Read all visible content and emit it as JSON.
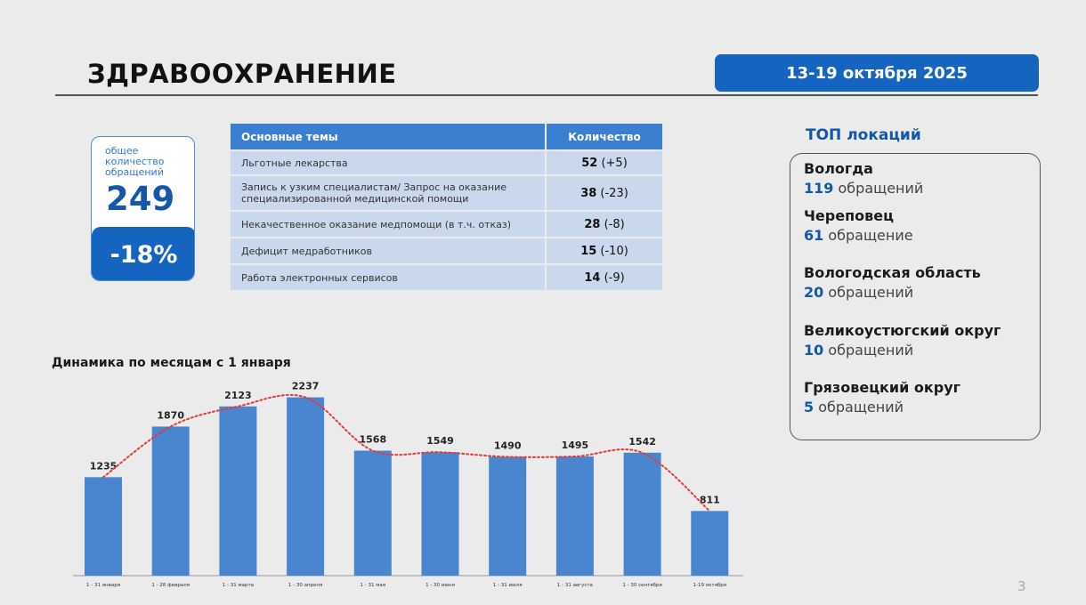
{
  "header": {
    "title": "ЗДРАВООХРАНЕНИЕ",
    "date_range": "13-19 октября 2025"
  },
  "total": {
    "label": "общее количество обращений",
    "value": "249",
    "change": "-18%"
  },
  "topics": {
    "col_topic": "Основные темы",
    "col_count": "Количество",
    "rows": [
      {
        "topic": "Льготные лекарства",
        "count": "52",
        "delta": "(+5)"
      },
      {
        "topic": "Запись к узким специалистам/ Запрос на оказание специализированной медицинской помощи",
        "count": "38",
        "delta": "(-23)"
      },
      {
        "topic": "Некачественное оказание медпомощи (в т.ч. отказ)",
        "count": "28",
        "delta": "(-8)"
      },
      {
        "topic": "Дефицит медработников",
        "count": "15",
        "delta": "(-10)"
      },
      {
        "topic": "Работа электронных сервисов",
        "count": "14",
        "delta": "(-9)"
      }
    ]
  },
  "locations": {
    "title": "ТОП локаций",
    "items": [
      {
        "name": "Вологда",
        "count": "119",
        "unit": "обращений"
      },
      {
        "name": "Череповец",
        "count": "61",
        "unit": "обращение"
      },
      {
        "name": "Вологодская область",
        "count": "20",
        "unit": "обращений"
      },
      {
        "name": "Великоустюгский округ",
        "count": "10",
        "unit": "обращений"
      },
      {
        "name": "Грязовецкий округ",
        "count": "5",
        "unit": "обращений"
      }
    ]
  },
  "chart_title": "Динамика по месяцам с 1 января",
  "page_number": "3",
  "colors": {
    "accent": "#1565c0",
    "bar": "#4a86d0",
    "trend": "#e53935",
    "table_header": "#3b7fd0",
    "table_row": "#c9d8ec"
  },
  "chart_data": {
    "type": "bar",
    "categories": [
      "1 - 31 января",
      "1 - 28 февраля",
      "1 - 31 марта",
      "1 - 30 апреля",
      "1 - 31 мая",
      "1 - 30 июня",
      "1 - 31 июля",
      "1 - 31 августа",
      "1 - 30 сентября",
      "1-19 октября"
    ],
    "values": [
      1235,
      1870,
      2123,
      2237,
      1568,
      1549,
      1490,
      1495,
      1542,
      811
    ],
    "ylim": [
      0,
      2500
    ],
    "trend_line": "dotted",
    "grid": false,
    "legend": "none",
    "title": "Динамика по месяцам с 1 января",
    "xlabel": "",
    "ylabel": ""
  }
}
